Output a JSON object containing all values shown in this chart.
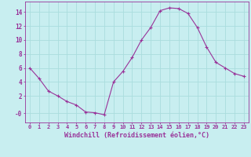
{
  "x": [
    0,
    1,
    2,
    3,
    4,
    5,
    6,
    7,
    8,
    9,
    10,
    11,
    12,
    13,
    14,
    15,
    16,
    17,
    18,
    19,
    20,
    21,
    22,
    23
  ],
  "y": [
    6.0,
    4.5,
    2.7,
    2.0,
    1.2,
    0.7,
    -0.3,
    -0.4,
    -0.7,
    4.0,
    5.5,
    7.5,
    10.0,
    11.8,
    14.2,
    14.6,
    14.5,
    13.8,
    11.8,
    9.0,
    6.8,
    6.0,
    5.2,
    4.8
  ],
  "line_color": "#993399",
  "marker": "+",
  "marker_size": 3,
  "bg_color": "#c8eef0",
  "grid_color": "#aadddd",
  "xlabel": "Windchill (Refroidissement éolien,°C)",
  "ylabel_ticks": [
    "-0",
    "2",
    "4",
    "6",
    "8",
    "10",
    "12",
    "14"
  ],
  "yticks": [
    -0.5,
    2,
    4,
    6,
    8,
    10,
    12,
    14
  ],
  "ylim": [
    -1.8,
    15.5
  ],
  "xlim": [
    -0.5,
    23.5
  ],
  "tick_color": "#993399",
  "label_color": "#993399",
  "font_family": "monospace",
  "tick_fontsize": 5.0,
  "xlabel_fontsize": 6.0
}
